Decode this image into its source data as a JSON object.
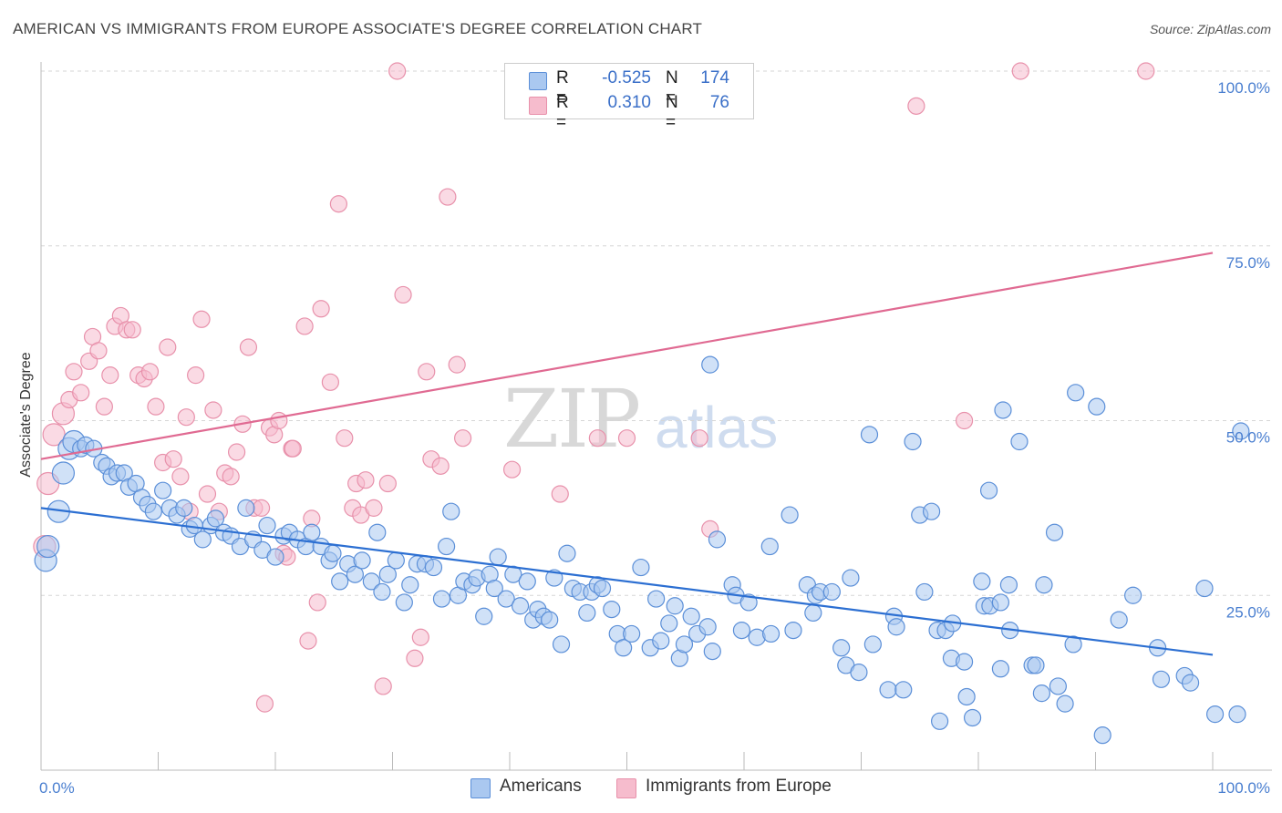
{
  "title": "AMERICAN VS IMMIGRANTS FROM EUROPE ASSOCIATE'S DEGREE CORRELATION CHART",
  "source": "Source: ZipAtlas.com",
  "watermark": {
    "zip": "ZIP",
    "atlas": "atlas"
  },
  "legend": {
    "r_label": "R =",
    "n_label": "N =",
    "rows": [
      {
        "r": "-0.525",
        "n": "174"
      },
      {
        "r": "0.310",
        "n": "76"
      }
    ]
  },
  "bottom_legend": {
    "americans": "Americans",
    "immigrants": "Immigrants from Europe"
  },
  "colors": {
    "americans_fill": "#aac8f0",
    "americans_stroke": "#5b8fd8",
    "americans_line": "#2c6fd2",
    "immigrants_fill": "#f6bccd",
    "immigrants_stroke": "#e891ab",
    "immigrants_line": "#e06a92",
    "tick_text": "#4a7fd0",
    "grid": "#d6d6d6"
  },
  "chart_data": {
    "type": "scatter",
    "title": "AMERICAN VS IMMIGRANTS FROM EUROPE ASSOCIATE'S DEGREE CORRELATION CHART",
    "xlabel": "",
    "ylabel": "Associate's Degree",
    "xlim": [
      0,
      100
    ],
    "ylim": [
      0,
      100
    ],
    "x_tick_labels": [
      "0.0%",
      "100.0%"
    ],
    "y_tick_labels": [
      "25.0%",
      "50.0%",
      "75.0%",
      "100.0%"
    ],
    "y_ticks": [
      25,
      50,
      75,
      100
    ],
    "grid": true,
    "legend_position": "top-center",
    "series": [
      {
        "name": "Americans",
        "r": -0.525,
        "n": 174,
        "trend": [
          [
            0,
            37.5
          ],
          [
            100,
            16.5
          ]
        ],
        "points": [
          [
            0.4,
            30
          ],
          [
            0.6,
            32
          ],
          [
            1.5,
            37
          ],
          [
            1.9,
            42.5
          ],
          [
            2.4,
            46
          ],
          [
            2.8,
            47
          ],
          [
            3.4,
            46
          ],
          [
            3.8,
            46.5
          ],
          [
            4.5,
            46
          ],
          [
            5.2,
            44
          ],
          [
            5.6,
            43.5
          ],
          [
            6,
            42
          ],
          [
            6.5,
            42.5
          ],
          [
            7.1,
            42.5
          ],
          [
            7.5,
            40.5
          ],
          [
            8.1,
            41
          ],
          [
            8.6,
            39
          ],
          [
            9.1,
            38
          ],
          [
            9.6,
            37
          ],
          [
            10.4,
            40
          ],
          [
            11,
            37.5
          ],
          [
            11.6,
            36.5
          ],
          [
            12.2,
            37.5
          ],
          [
            12.7,
            34.5
          ],
          [
            13.1,
            35
          ],
          [
            13.8,
            33
          ],
          [
            14.5,
            35
          ],
          [
            14.9,
            36
          ],
          [
            15.6,
            34
          ],
          [
            16.2,
            33.5
          ],
          [
            17,
            32
          ],
          [
            17.5,
            37.5
          ],
          [
            18.1,
            33
          ],
          [
            18.9,
            31.5
          ],
          [
            19.3,
            35
          ],
          [
            20,
            30.5
          ],
          [
            20.7,
            33.5
          ],
          [
            21.2,
            34
          ],
          [
            21.9,
            33
          ],
          [
            22.6,
            32
          ],
          [
            23.1,
            34
          ],
          [
            23.9,
            32
          ],
          [
            24.6,
            30
          ],
          [
            24.9,
            31
          ],
          [
            25.5,
            27
          ],
          [
            26.2,
            29.5
          ],
          [
            26.8,
            28
          ],
          [
            27.4,
            30
          ],
          [
            28.2,
            27
          ],
          [
            28.7,
            34
          ],
          [
            29.1,
            25.5
          ],
          [
            29.6,
            28
          ],
          [
            30.3,
            30
          ],
          [
            31,
            24
          ],
          [
            31.5,
            26.5
          ],
          [
            32.1,
            29.5
          ],
          [
            32.8,
            29.5
          ],
          [
            33.5,
            29
          ],
          [
            34.2,
            24.5
          ],
          [
            34.6,
            32
          ],
          [
            35,
            37
          ],
          [
            35.6,
            25
          ],
          [
            36.1,
            27
          ],
          [
            36.8,
            26.5
          ],
          [
            37.2,
            27.5
          ],
          [
            37.8,
            22
          ],
          [
            38.3,
            28
          ],
          [
            38.7,
            26
          ],
          [
            39,
            30.5
          ],
          [
            39.7,
            24.5
          ],
          [
            40.3,
            28
          ],
          [
            40.9,
            23.5
          ],
          [
            41.5,
            27
          ],
          [
            42,
            21.5
          ],
          [
            42.4,
            23
          ],
          [
            42.9,
            22
          ],
          [
            43.4,
            21.5
          ],
          [
            43.8,
            27.5
          ],
          [
            44.4,
            18
          ],
          [
            44.9,
            31
          ],
          [
            45.4,
            26
          ],
          [
            46,
            25.5
          ],
          [
            46.6,
            22.5
          ],
          [
            47,
            25.5
          ],
          [
            47.5,
            26.5
          ],
          [
            47.9,
            26
          ],
          [
            48.7,
            23
          ],
          [
            49.2,
            19.5
          ],
          [
            49.7,
            17.5
          ],
          [
            50.4,
            19.5
          ],
          [
            51.2,
            29
          ],
          [
            52,
            17.5
          ],
          [
            52.5,
            24.5
          ],
          [
            52.9,
            18.5
          ],
          [
            53.6,
            21
          ],
          [
            54.1,
            23.5
          ],
          [
            54.5,
            16
          ],
          [
            54.9,
            18
          ],
          [
            55.5,
            22
          ],
          [
            56,
            19.5
          ],
          [
            56.9,
            20.5
          ],
          [
            57.1,
            58
          ],
          [
            57.7,
            33
          ],
          [
            57.3,
            17
          ],
          [
            59,
            26.5
          ],
          [
            59.3,
            25
          ],
          [
            59.8,
            20
          ],
          [
            60.4,
            24
          ],
          [
            61.1,
            19
          ],
          [
            62.2,
            32
          ],
          [
            62.3,
            19.5
          ],
          [
            63.9,
            36.5
          ],
          [
            64.2,
            20
          ],
          [
            65.4,
            26.5
          ],
          [
            66.1,
            25
          ],
          [
            65.9,
            22.5
          ],
          [
            66.5,
            25.5
          ],
          [
            67.5,
            25.5
          ],
          [
            68.3,
            17.5
          ],
          [
            68.7,
            15
          ],
          [
            69.1,
            27.5
          ],
          [
            69.8,
            14
          ],
          [
            71,
            18
          ],
          [
            70.7,
            48
          ],
          [
            72.3,
            11.5
          ],
          [
            72.8,
            22
          ],
          [
            73,
            20.5
          ],
          [
            73.6,
            11.5
          ],
          [
            74.4,
            47
          ],
          [
            75,
            36.5
          ],
          [
            75.4,
            25.5
          ],
          [
            76,
            37
          ],
          [
            76.5,
            20
          ],
          [
            76.7,
            7
          ],
          [
            77.2,
            20
          ],
          [
            77.8,
            21
          ],
          [
            77.7,
            16
          ],
          [
            78.8,
            15.5
          ],
          [
            79,
            10.5
          ],
          [
            79.5,
            7.5
          ],
          [
            80.3,
            27
          ],
          [
            80.9,
            40
          ],
          [
            80.5,
            23.5
          ],
          [
            81,
            23.5
          ],
          [
            81.9,
            24
          ],
          [
            81.9,
            14.5
          ],
          [
            82.1,
            51.5
          ],
          [
            82.6,
            26.5
          ],
          [
            82.7,
            20
          ],
          [
            83.5,
            47
          ],
          [
            84.6,
            15
          ],
          [
            84.9,
            15
          ],
          [
            85.4,
            11
          ],
          [
            85.6,
            26.5
          ],
          [
            86.5,
            34
          ],
          [
            86.8,
            12
          ],
          [
            87.4,
            9.5
          ],
          [
            88.1,
            18
          ],
          [
            88.3,
            54
          ],
          [
            90.1,
            52
          ],
          [
            90.6,
            5
          ],
          [
            92,
            21.5
          ],
          [
            93.2,
            25
          ],
          [
            95.3,
            17.5
          ],
          [
            95.6,
            13
          ],
          [
            97.6,
            13.5
          ],
          [
            98.1,
            12.5
          ],
          [
            99.3,
            26
          ],
          [
            100.2,
            8
          ],
          [
            102.1,
            8
          ],
          [
            102.4,
            48.5
          ]
        ]
      },
      {
        "name": "Immigrants from Europe",
        "r": 0.31,
        "n": 76,
        "trend": [
          [
            0,
            44.5
          ],
          [
            100,
            74
          ]
        ],
        "points": [
          [
            0.3,
            32
          ],
          [
            0.6,
            41
          ],
          [
            1.1,
            48
          ],
          [
            1.9,
            51
          ],
          [
            2.4,
            53
          ],
          [
            2.8,
            57
          ],
          [
            3.4,
            54
          ],
          [
            4.1,
            58.5
          ],
          [
            4.4,
            62
          ],
          [
            4.9,
            60
          ],
          [
            5.4,
            52
          ],
          [
            5.9,
            56.5
          ],
          [
            6.3,
            63.5
          ],
          [
            6.8,
            65
          ],
          [
            7.3,
            63
          ],
          [
            7.8,
            63
          ],
          [
            8.3,
            56.5
          ],
          [
            8.8,
            56
          ],
          [
            9.3,
            57
          ],
          [
            9.8,
            52
          ],
          [
            10.4,
            44
          ],
          [
            10.8,
            60.5
          ],
          [
            11.3,
            44.5
          ],
          [
            11.9,
            42
          ],
          [
            12.4,
            50.5
          ],
          [
            12.7,
            37
          ],
          [
            13.2,
            56.5
          ],
          [
            13.7,
            64.5
          ],
          [
            14.2,
            39.5
          ],
          [
            14.7,
            51.5
          ],
          [
            15.2,
            37
          ],
          [
            15.7,
            42.5
          ],
          [
            16.2,
            42
          ],
          [
            16.7,
            45.5
          ],
          [
            17.2,
            49.5
          ],
          [
            17.7,
            60.5
          ],
          [
            18.2,
            37.5
          ],
          [
            18.8,
            37.5
          ],
          [
            19.1,
            9.5
          ],
          [
            19.5,
            49
          ],
          [
            19.9,
            48
          ],
          [
            20.3,
            50
          ],
          [
            20.7,
            31
          ],
          [
            21,
            30.5
          ],
          [
            21.4,
            46
          ],
          [
            21.5,
            46
          ],
          [
            22.5,
            63.5
          ],
          [
            22.8,
            18.5
          ],
          [
            23.1,
            36
          ],
          [
            23.6,
            24
          ],
          [
            23.9,
            66
          ],
          [
            24.7,
            55.5
          ],
          [
            25.4,
            81
          ],
          [
            25.9,
            47.5
          ],
          [
            26.6,
            37.5
          ],
          [
            26.9,
            41
          ],
          [
            27.3,
            36.5
          ],
          [
            27.7,
            41.5
          ],
          [
            28.4,
            37.5
          ],
          [
            29.2,
            12
          ],
          [
            29.6,
            41
          ],
          [
            30.4,
            100
          ],
          [
            30.9,
            68
          ],
          [
            31.9,
            16
          ],
          [
            32.4,
            19
          ],
          [
            32.9,
            57
          ],
          [
            33.3,
            44.5
          ],
          [
            34.1,
            43.5
          ],
          [
            34.7,
            82
          ],
          [
            35.5,
            58
          ],
          [
            36,
            47.5
          ],
          [
            40.2,
            43
          ],
          [
            44.3,
            39.5
          ],
          [
            47.5,
            47.5
          ],
          [
            50,
            47.5
          ],
          [
            56.2,
            47.5
          ],
          [
            57.1,
            34.5
          ],
          [
            74.7,
            95
          ],
          [
            78.8,
            50
          ],
          [
            83.6,
            100
          ],
          [
            94.3,
            100
          ]
        ]
      }
    ]
  }
}
